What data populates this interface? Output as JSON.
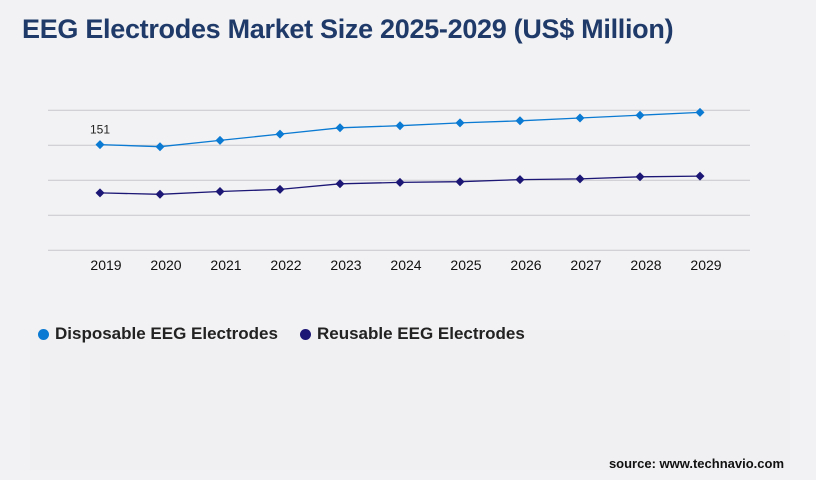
{
  "title": "EEG Electrodes Market Size 2025-2029 (US$ Million)",
  "source": "source: www.technavio.com",
  "colors": {
    "disposable": "#0a7ad2",
    "reusable": "#1c1675",
    "title": "#1f3a68",
    "grid": "#c8c8cc"
  },
  "chart_data": {
    "type": "line",
    "title": "EEG Electrodes Market Size 2025-2029 (US$ Million)",
    "categories": [
      "2019",
      "2020",
      "2021",
      "2022",
      "2023",
      "2024",
      "2025",
      "2026",
      "2027",
      "2028",
      "2029"
    ],
    "ylim": [
      0,
      200
    ],
    "grid": true,
    "legend_placement": "bottom-left",
    "series": [
      {
        "name": "Disposable EEG Electrodes",
        "values": [
          151,
          148,
          157,
          166,
          175,
          178,
          182,
          185,
          189,
          193,
          197
        ]
      },
      {
        "name": "Reusable EEG Electrodes",
        "values": [
          82,
          80,
          84,
          87,
          95,
          97,
          98,
          101,
          102,
          105,
          106
        ]
      }
    ],
    "annotations": [
      {
        "category": "2019",
        "series": "Disposable EEG Electrodes",
        "text": "151"
      }
    ]
  }
}
